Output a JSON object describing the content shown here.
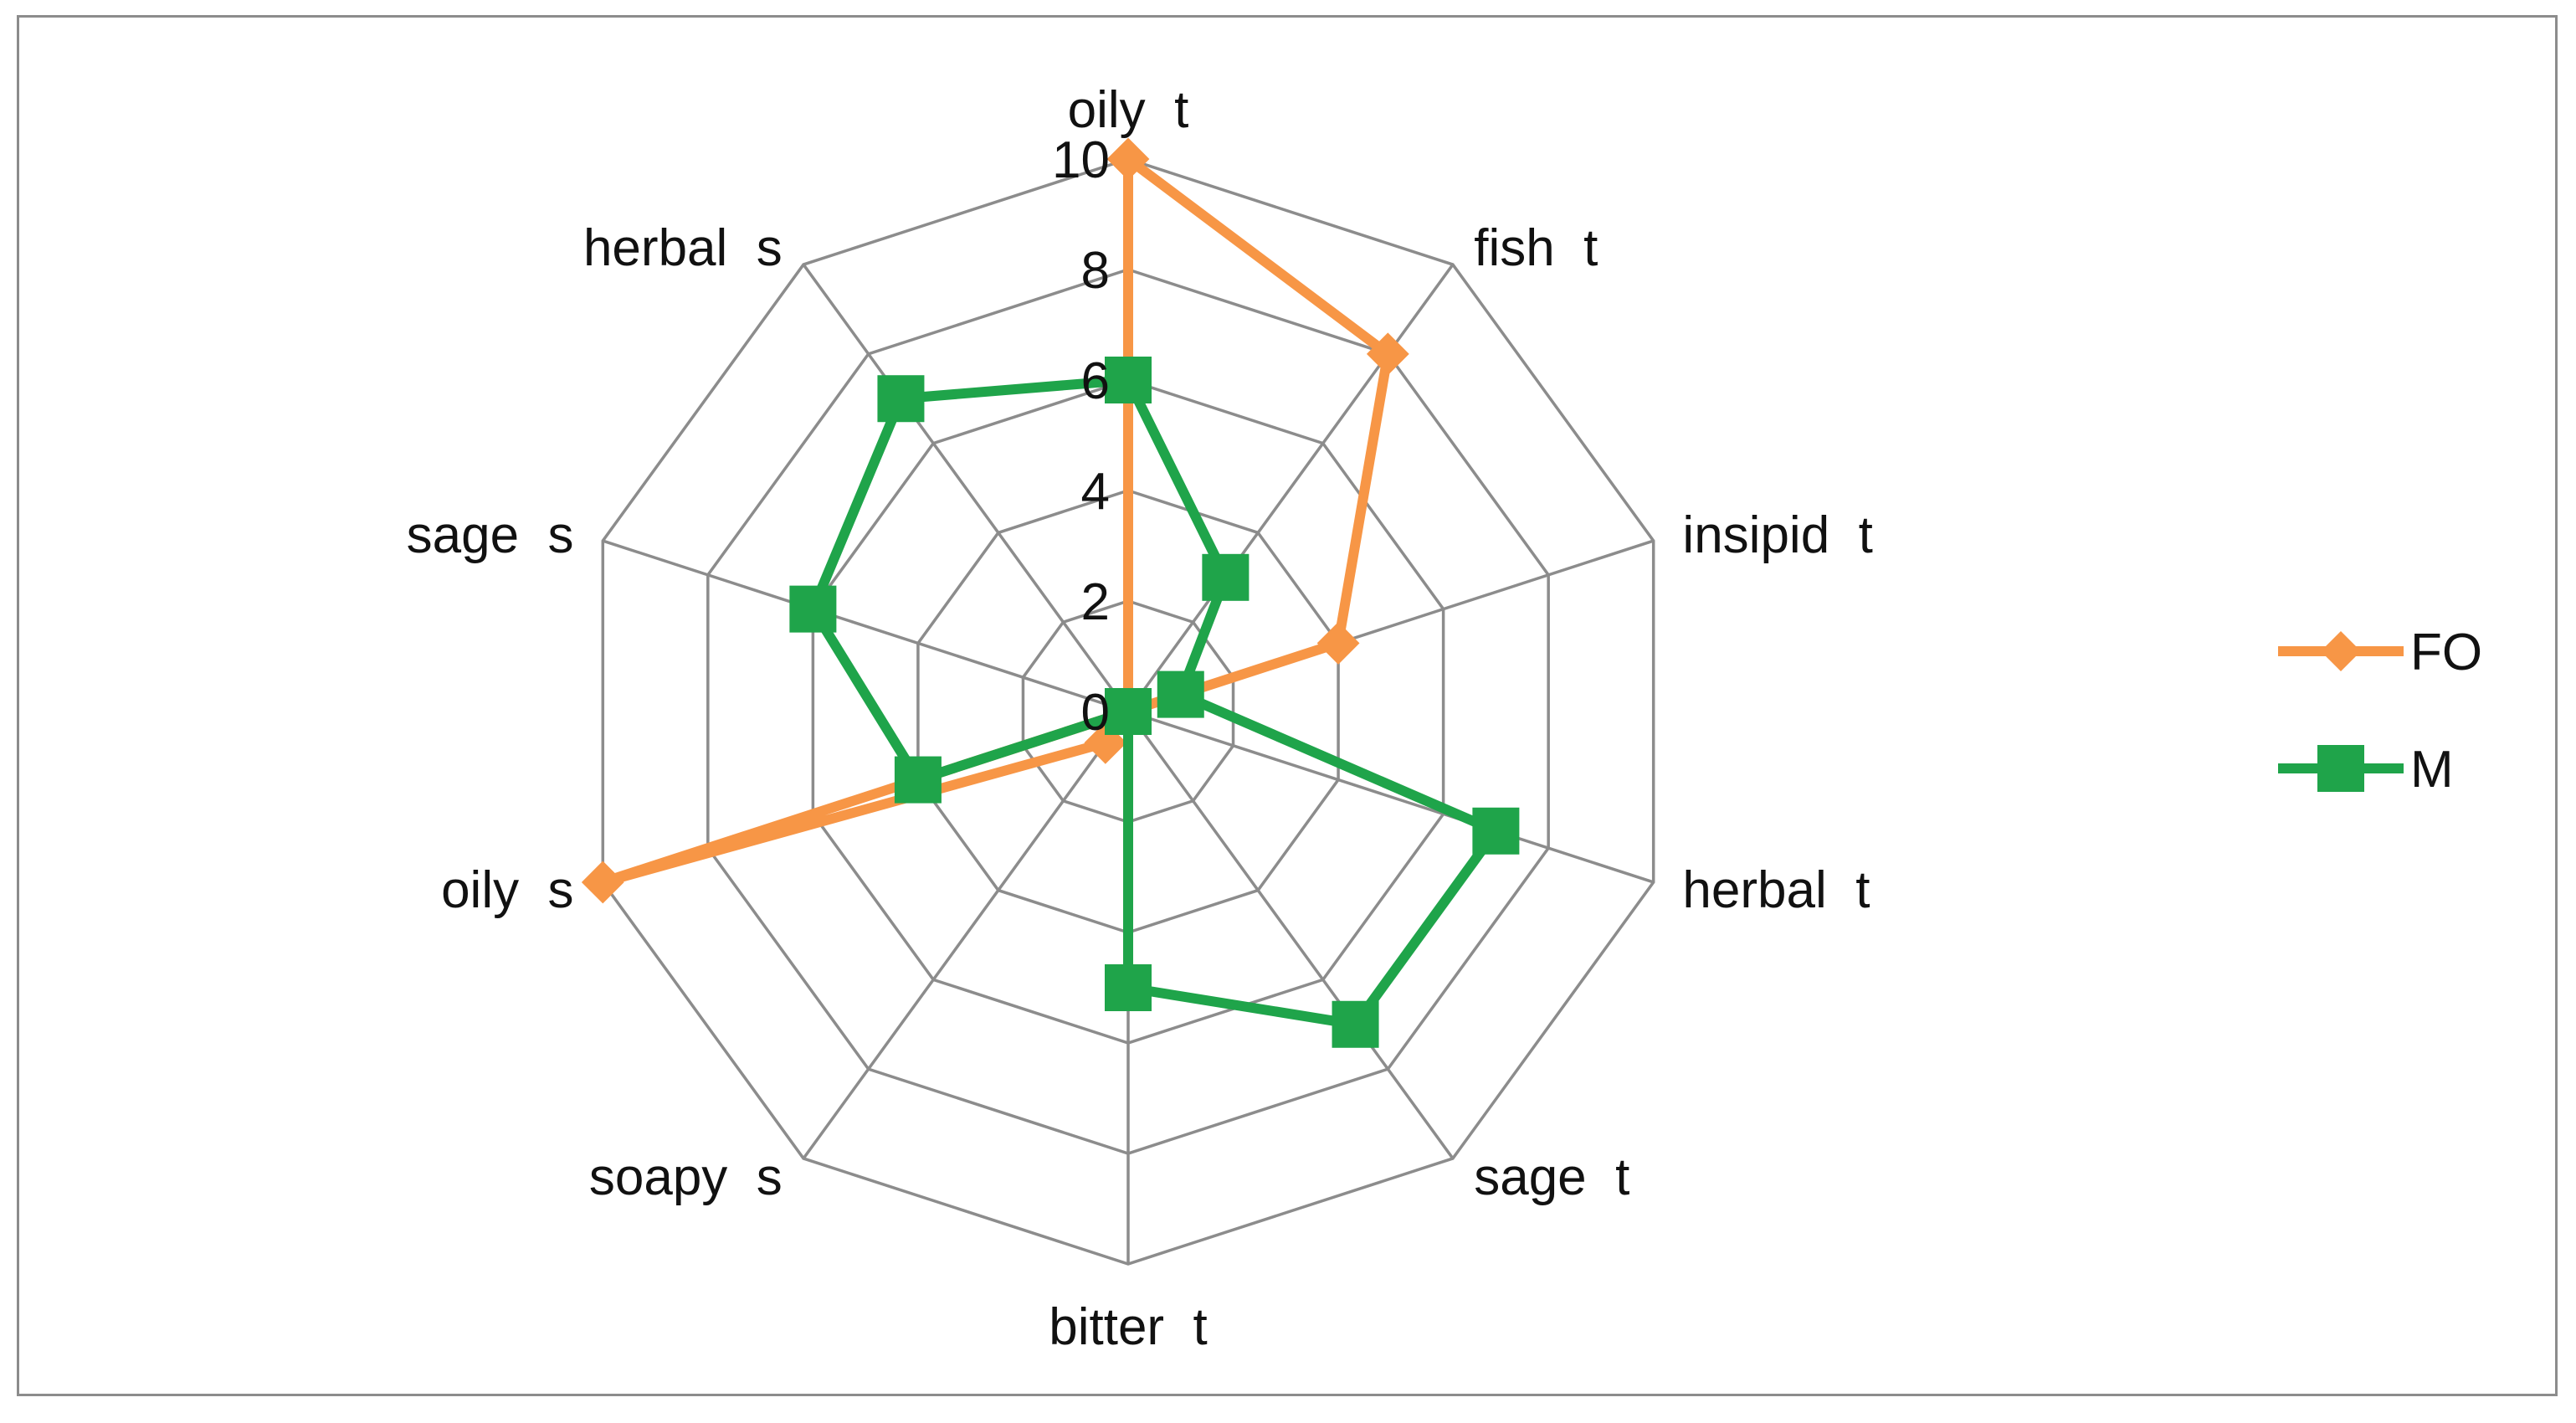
{
  "chart_data": {
    "type": "radar",
    "categories": [
      "oily  t",
      "fish  t",
      "insipid  t",
      "herbal  t",
      "sage  t",
      "bitter  t",
      "soapy  s",
      "oily  s",
      "sage  s",
      "herbal  s"
    ],
    "series": [
      {
        "name": "FO",
        "values": [
          10,
          8,
          4,
          0,
          0,
          0,
          0.7,
          10,
          0,
          0
        ],
        "color": "#F79646",
        "marker": "diamond"
      },
      {
        "name": "M",
        "values": [
          6,
          3,
          1,
          7,
          7,
          5,
          0,
          4,
          6,
          7
        ],
        "color": "#1FA44A",
        "marker": "square"
      }
    ],
    "rlim": [
      0,
      10
    ],
    "ticks": [
      0,
      2,
      4,
      6,
      8,
      10
    ],
    "grid": true,
    "legend_position": "right",
    "grid_color": "#8c8c8c"
  }
}
